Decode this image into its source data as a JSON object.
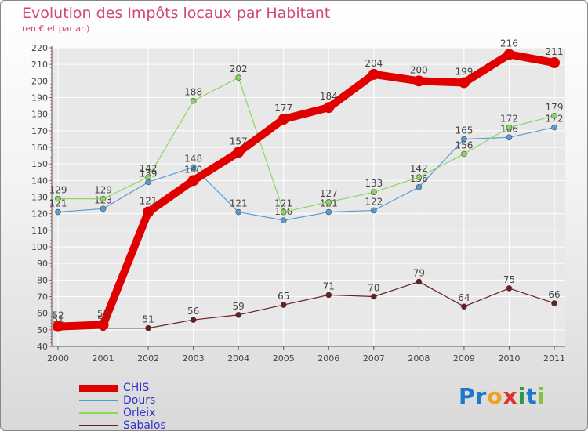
{
  "chart_data": {
    "type": "line",
    "title": "Evolution des Impôts locaux par Habitant",
    "subtitle": "(en € et par an)",
    "xlabel": "",
    "ylabel": "",
    "categories": [
      "2000",
      "2001",
      "2002",
      "2003",
      "2004",
      "2005",
      "2006",
      "2007",
      "2008",
      "2009",
      "2010",
      "2011"
    ],
    "ylim": [
      40,
      220
    ],
    "yticks": [
      40,
      50,
      60,
      70,
      80,
      90,
      100,
      110,
      120,
      130,
      140,
      150,
      160,
      170,
      180,
      190,
      200,
      210,
      220
    ],
    "grid": true,
    "series": [
      {
        "name": "Dours",
        "color": "#5b9bd5",
        "values": [
          121,
          123,
          139,
          148,
          121,
          116,
          121,
          122,
          136,
          165,
          166,
          172
        ]
      },
      {
        "name": "Orleix",
        "color": "#8ed65a",
        "values": [
          129,
          129,
          142,
          188,
          202,
          121,
          127,
          133,
          142,
          156,
          172,
          179
        ]
      },
      {
        "name": "Sabalos",
        "color": "#6b1e22",
        "values": [
          51,
          51,
          51,
          56,
          59,
          65,
          71,
          70,
          79,
          64,
          75,
          66
        ]
      },
      {
        "name": "CHIS",
        "color": "#e00000",
        "values": [
          52,
          53,
          121,
          140,
          157,
          177,
          184,
          204,
          200,
          199,
          216,
          211
        ]
      }
    ],
    "legend_order": [
      "CHIS",
      "Dours",
      "Orleix",
      "Sabalos"
    ],
    "legend_position": "bottom-left"
  },
  "branding": {
    "logo_text": "Proxiti",
    "letters": [
      {
        "ch": "P",
        "color": "#1e78c8"
      },
      {
        "ch": "r",
        "color": "#1e78c8"
      },
      {
        "ch": "o",
        "color": "#f0a020"
      },
      {
        "ch": "x",
        "color": "#e03030"
      },
      {
        "ch": "i",
        "color": "#2a9a3a"
      },
      {
        "ch": "t",
        "color": "#1e78c8"
      },
      {
        "ch": "i",
        "color": "#8ac040"
      }
    ]
  }
}
